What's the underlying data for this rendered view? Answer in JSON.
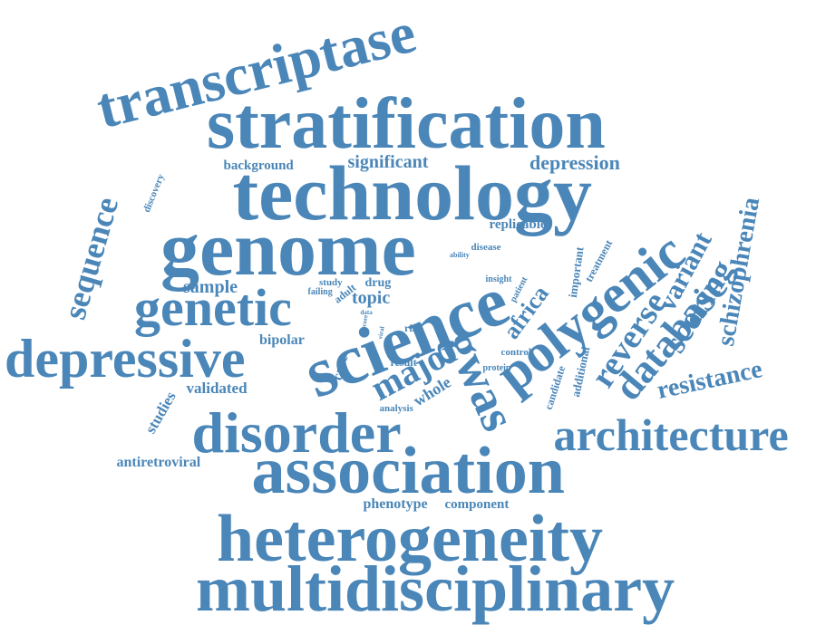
{
  "color": "#4a86b8",
  "words": [
    {
      "text": "transcriptase"
    },
    {
      "text": "stratification"
    },
    {
      "text": "technology"
    },
    {
      "text": "genome"
    },
    {
      "text": "science"
    },
    {
      "text": "association"
    },
    {
      "text": "heterogeneity"
    },
    {
      "text": "multidisciplinary"
    },
    {
      "text": "disorder"
    },
    {
      "text": "depressive"
    },
    {
      "text": "genetic"
    },
    {
      "text": "architecture"
    },
    {
      "text": "polygenic"
    },
    {
      "text": "gwas"
    },
    {
      "text": "major"
    },
    {
      "text": "database"
    },
    {
      "text": "reverse"
    },
    {
      "text": "scoring"
    },
    {
      "text": "variant"
    },
    {
      "text": "schizophrenia"
    },
    {
      "text": "resistance"
    },
    {
      "text": "sequence"
    },
    {
      "text": "africa"
    },
    {
      "text": "depression"
    },
    {
      "text": "significant"
    },
    {
      "text": "sample"
    },
    {
      "text": "topic"
    },
    {
      "text": "background"
    },
    {
      "text": "antiretroviral"
    },
    {
      "text": "validated"
    },
    {
      "text": "studies"
    },
    {
      "text": "bipolar"
    },
    {
      "text": "whole"
    },
    {
      "text": "replicable"
    },
    {
      "text": "phenotype"
    },
    {
      "text": "component"
    },
    {
      "text": "case"
    },
    {
      "text": "drug"
    },
    {
      "text": "study"
    },
    {
      "text": "adult"
    },
    {
      "text": "failing"
    },
    {
      "text": "analysis"
    },
    {
      "text": "result"
    },
    {
      "text": "risk"
    },
    {
      "text": "control"
    },
    {
      "text": "protein"
    },
    {
      "text": "insight"
    },
    {
      "text": "disease"
    },
    {
      "text": "ability"
    },
    {
      "text": "treatment"
    },
    {
      "text": "important"
    },
    {
      "text": "patient"
    },
    {
      "text": "candidate"
    },
    {
      "text": "additional"
    },
    {
      "text": "discovery"
    },
    {
      "text": "data"
    },
    {
      "text": "score"
    },
    {
      "text": "viral"
    }
  ]
}
